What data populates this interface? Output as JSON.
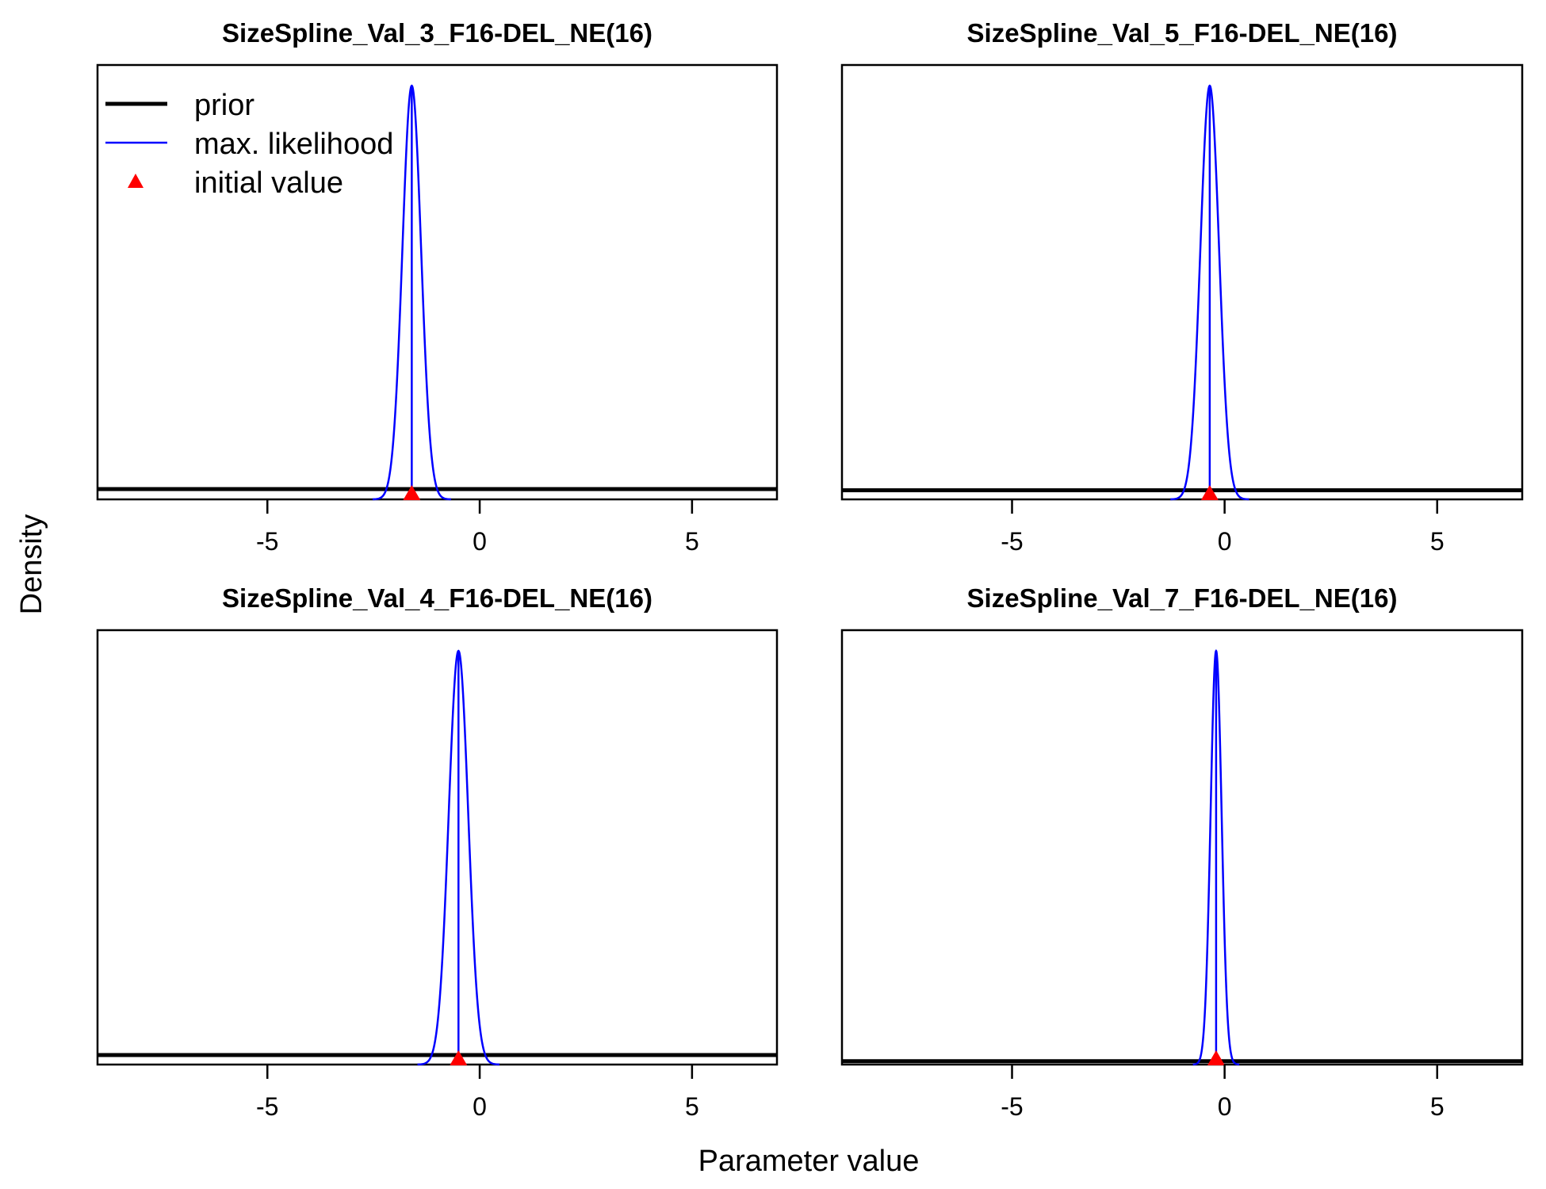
{
  "figure": {
    "xlabel": "Parameter value",
    "ylabel": "Density"
  },
  "legend": {
    "placement": "top-left of first panel",
    "items": [
      {
        "label": "prior",
        "kind": "line",
        "color": "#000000"
      },
      {
        "label": "max. likelihood",
        "kind": "line",
        "color": "#0000ff"
      },
      {
        "label": "initial value",
        "kind": "triangle",
        "color": "#ff0000"
      }
    ]
  },
  "colors": {
    "prior": "#000000",
    "max_likelihood": "#0000ff",
    "initial_value": "#ff0000"
  },
  "chart_data": [
    {
      "type": "line",
      "title": "SizeSpline_Val_3_F16-DEL_NE(16)",
      "xlim": [
        -9,
        7
      ],
      "xticks": [
        -5,
        0,
        5
      ],
      "tick_labels": [
        "-5",
        "0",
        "5"
      ],
      "prior_density": 0.045,
      "mle": -1.6,
      "sd": 0.22,
      "initial_value": -1.6
    },
    {
      "type": "line",
      "title": "SizeSpline_Val_5_F16-DEL_NE(16)",
      "xlim": [
        -9,
        7
      ],
      "xticks": [
        -5,
        0,
        5
      ],
      "tick_labels": [
        "-5",
        "0",
        "5"
      ],
      "prior_density": 0.04,
      "mle": -0.35,
      "sd": 0.22,
      "initial_value": -0.35
    },
    {
      "type": "line",
      "title": "SizeSpline_Val_4_F16-DEL_NE(16)",
      "xlim": [
        -9,
        7
      ],
      "xticks": [
        -5,
        0,
        5
      ],
      "tick_labels": [
        "-5",
        "0",
        "5"
      ],
      "prior_density": 0.04,
      "mle": -0.5,
      "sd": 0.23,
      "initial_value": -0.5
    },
    {
      "type": "line",
      "title": "SizeSpline_Val_7_F16-DEL_NE(16)",
      "xlim": [
        -9,
        7
      ],
      "xticks": [
        -5,
        0,
        5
      ],
      "tick_labels": [
        "-5",
        "0",
        "5"
      ],
      "prior_density": 0.025,
      "mle": -0.2,
      "sd": 0.13,
      "initial_value": -0.2
    }
  ]
}
